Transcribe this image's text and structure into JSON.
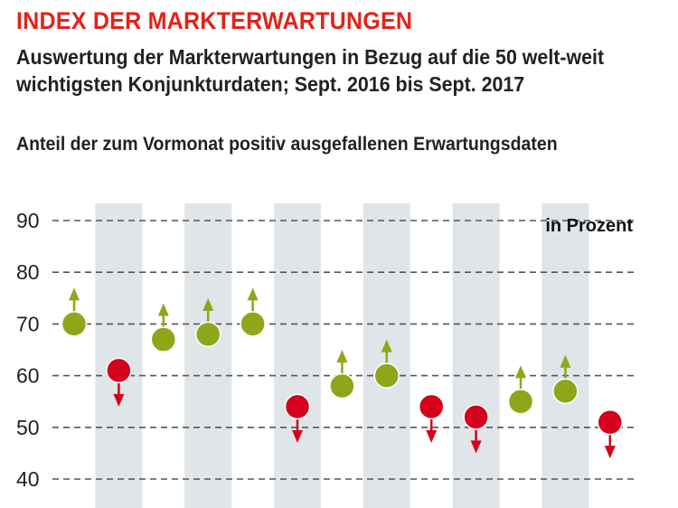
{
  "header": {
    "title": "INDEX DER MARKTERWARTUNGEN",
    "subtitle": "Auswertung der Markterwartungen in Bezug auf die 50 welt-weit wichtigsten Konjunkturdaten; Sept. 2016 bis Sept. 2017",
    "measure": "Anteil der zum Vormonat positiv ausgefallenen Erwartungsdaten"
  },
  "chart_data": {
    "type": "scatter",
    "unit_label": "in Prozent",
    "ylim": [
      40,
      90
    ],
    "yticks": [
      "90",
      "80",
      "70",
      "60",
      "50",
      "40"
    ],
    "grid": true,
    "legend": "none",
    "colors": {
      "up": "#8fa61a",
      "down": "#d5001c",
      "band": "#dfe5e8",
      "grid": "#555555"
    },
    "values": [
      70,
      61,
      67,
      68,
      70,
      54,
      58,
      60,
      54,
      52,
      55,
      57,
      51
    ],
    "direction": [
      "up",
      "down",
      "up",
      "up",
      "up",
      "down",
      "up",
      "up",
      "down",
      "down",
      "up",
      "up",
      "down"
    ]
  }
}
